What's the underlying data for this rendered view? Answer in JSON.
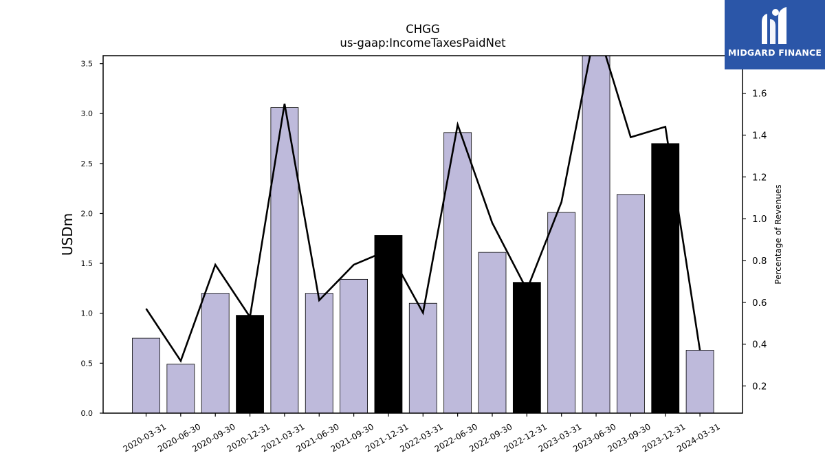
{
  "chart_data": {
    "type": "bar",
    "title": "CHGG",
    "subtitle": "us-gaap:IncomeTaxesPaidNet",
    "ylabel": "USDm",
    "y2label": "Percentage of Revenues",
    "categories": [
      "2020-03-31",
      "2020-06-30",
      "2020-09-30",
      "2020-12-31",
      "2021-03-31",
      "2021-06-30",
      "2021-09-30",
      "2021-12-31",
      "2022-03-31",
      "2022-06-30",
      "2022-09-30",
      "2022-12-31",
      "2023-03-31",
      "2023-06-30",
      "2023-09-30",
      "2023-12-31",
      "2024-03-31"
    ],
    "series": [
      {
        "values": [
          0.75,
          0.49,
          1.2,
          0.98,
          3.06,
          1.2,
          1.34,
          1.78,
          1.1,
          2.81,
          1.61,
          1.31,
          2.01,
          3.62,
          2.19,
          2.7,
          0.63
        ],
        "highlight": [
          false,
          false,
          false,
          true,
          false,
          false,
          false,
          true,
          false,
          false,
          false,
          true,
          false,
          false,
          false,
          true,
          false
        ],
        "color": "#bebadb",
        "highlight_color": "#000000",
        "axis": "left"
      },
      {
        "values": [
          0.57,
          0.32,
          0.78,
          0.53,
          1.55,
          0.61,
          0.78,
          0.85,
          0.55,
          1.45,
          0.98,
          0.66,
          1.08,
          1.93,
          1.39,
          1.44,
          0.37
        ],
        "color": "#000000",
        "type": "line",
        "axis": "right"
      }
    ],
    "ylim": [
      0,
      3.58
    ],
    "y2lim": [
      0.07,
      1.78
    ],
    "yticks": [
      "0.0",
      "0.5",
      "1.0",
      "1.5",
      "2.0",
      "2.5",
      "3.0",
      "3.5"
    ],
    "y2ticks": [
      "0.2",
      "0.4",
      "0.6",
      "0.8",
      "1.0",
      "1.2",
      "1.4",
      "1.6"
    ],
    "grid": false,
    "legend": "none"
  },
  "logo": {
    "text": "MIDGARD FINANCE",
    "color": "#2b56a8"
  }
}
